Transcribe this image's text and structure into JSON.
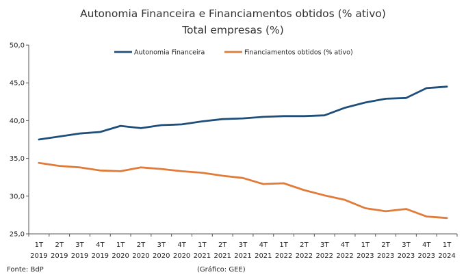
{
  "chart_data": {
    "type": "line",
    "title": "Autonomia Financeira e Financiamentos obtidos (% ativo)",
    "subtitle": "Total empresas (%)",
    "xlabel": "",
    "ylabel": "",
    "ylim": [
      25.0,
      50.0
    ],
    "yticks": [
      "25,0",
      "30,0",
      "35,0",
      "40,0",
      "45,0",
      "50,0"
    ],
    "ytick_values": [
      25,
      30,
      35,
      40,
      45,
      50
    ],
    "legend_position": "top",
    "categories": [
      [
        "1T",
        "2019"
      ],
      [
        "2T",
        "2019"
      ],
      [
        "3T",
        "2019"
      ],
      [
        "4T",
        "2019"
      ],
      [
        "1T",
        "2020"
      ],
      [
        "2T",
        "2020"
      ],
      [
        "3T",
        "2020"
      ],
      [
        "4T",
        "2020"
      ],
      [
        "1T",
        "2021"
      ],
      [
        "2T",
        "2021"
      ],
      [
        "3T",
        "2021"
      ],
      [
        "4T",
        "2021"
      ],
      [
        "1T",
        "2022"
      ],
      [
        "2T",
        "2022"
      ],
      [
        "3T",
        "2022"
      ],
      [
        "4T",
        "2022"
      ],
      [
        "1T",
        "2023"
      ],
      [
        "2T",
        "2023"
      ],
      [
        "3T",
        "2023"
      ],
      [
        "4T",
        "2023"
      ],
      [
        "1T",
        "2024"
      ]
    ],
    "series": [
      {
        "name": "Autonomia Financeira",
        "color": "#1f4e79",
        "values": [
          37.5,
          37.9,
          38.3,
          38.5,
          39.3,
          39.0,
          39.4,
          39.5,
          39.9,
          40.2,
          40.3,
          40.5,
          40.6,
          40.6,
          40.7,
          41.7,
          42.4,
          42.9,
          43.0,
          44.3,
          44.5
        ]
      },
      {
        "name": "Financiamentos obtidos (% ativo)",
        "color": "#e07b39",
        "values": [
          34.4,
          34.0,
          33.8,
          33.4,
          33.3,
          33.8,
          33.6,
          33.3,
          33.1,
          32.7,
          32.4,
          31.6,
          31.7,
          30.8,
          30.1,
          29.5,
          28.4,
          28.0,
          28.3,
          27.3,
          27.1
        ]
      }
    ]
  },
  "footer": {
    "source": "Fonte: BdP",
    "credit": "(Gráfico: GEE)"
  }
}
